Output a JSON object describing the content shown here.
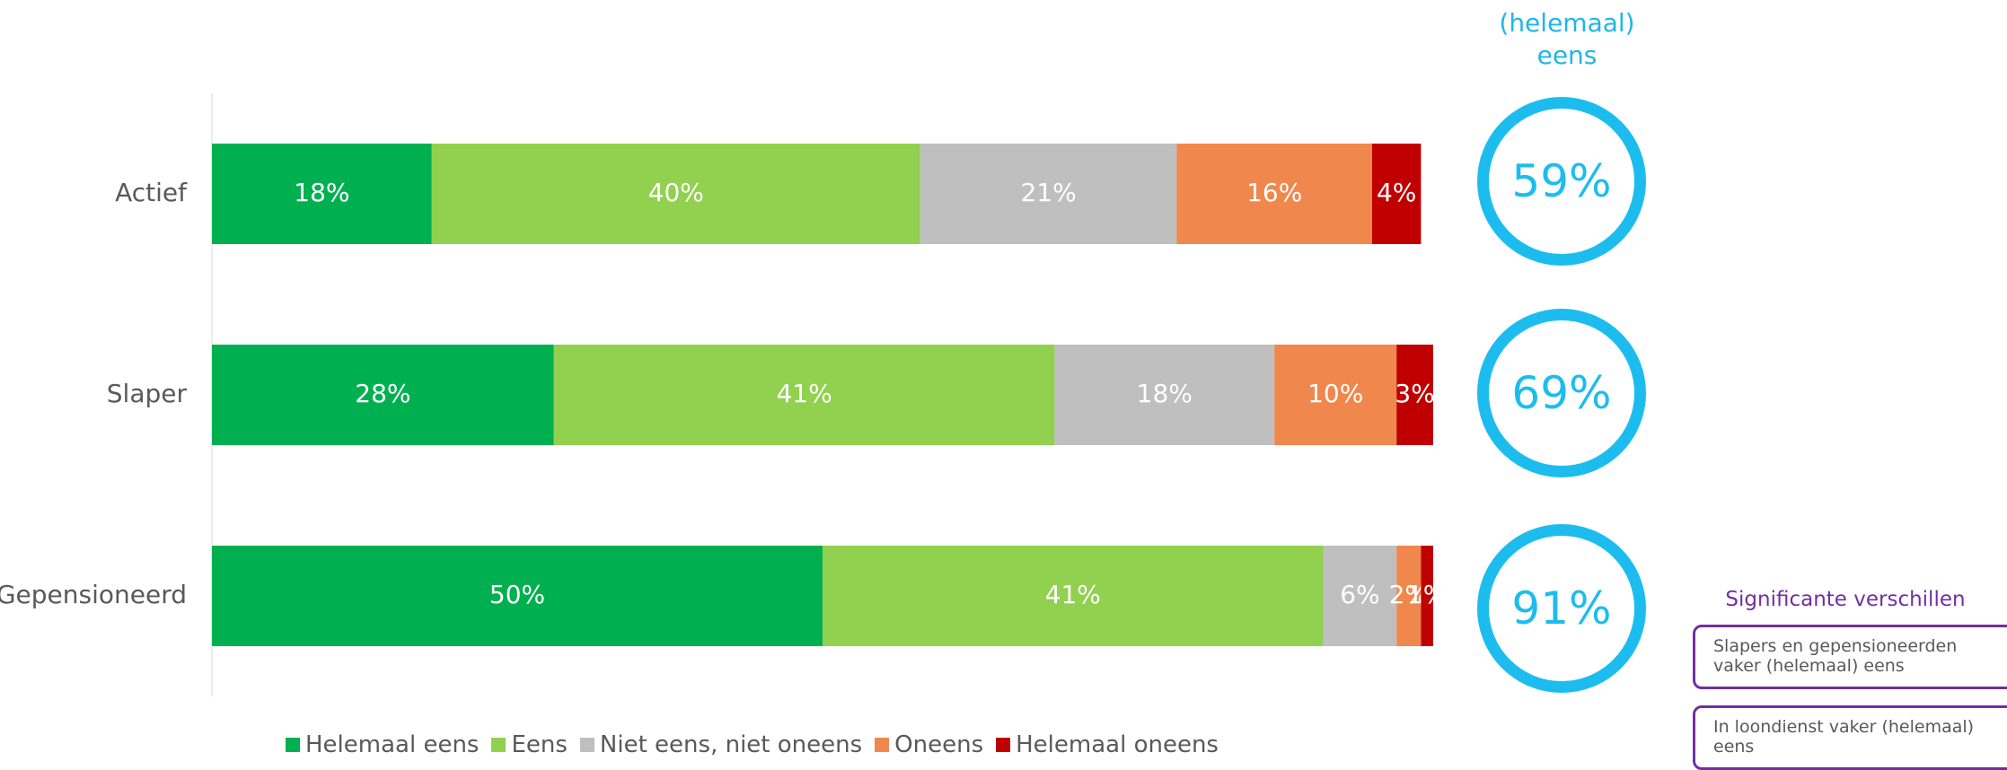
{
  "chart_data": {
    "type": "bar",
    "orientation": "horizontal",
    "stacked": true,
    "categories": [
      "Actief",
      "Slaper",
      "Gepensioneerd"
    ],
    "series": [
      {
        "name": "Helemaal eens",
        "color": "#00b050",
        "values": [
          18,
          28,
          50
        ],
        "labels": [
          "18%",
          "28%",
          "50%"
        ]
      },
      {
        "name": "Eens",
        "color": "#92d050",
        "values": [
          40,
          41,
          41
        ],
        "labels": [
          "40%",
          "41%",
          "41%"
        ]
      },
      {
        "name": "Niet eens, niet oneens",
        "color": "#bfbfbf",
        "values": [
          21,
          18,
          6
        ],
        "labels": [
          "21%",
          "18%",
          "6%"
        ]
      },
      {
        "name": "Oneens",
        "color": "#f0874c",
        "values": [
          16,
          10,
          2
        ],
        "labels": [
          "16%",
          "10%",
          "2%"
        ]
      },
      {
        "name": "Helemaal oneens",
        "color": "#c00000",
        "values": [
          4,
          3,
          1
        ],
        "labels": [
          "4%",
          "3%",
          "1%"
        ]
      }
    ],
    "legend_position": "bottom",
    "grid": false
  },
  "summary": {
    "header": "(helemaal) eens",
    "values": [
      "59%",
      "69%",
      "91%"
    ],
    "color": "#1cbdee"
  },
  "significance": {
    "title": "Significante verschillen",
    "notes": [
      "Slapers en gepensioneerden vaker (helemaal) eens",
      "In loondienst vaker (helemaal) eens"
    ],
    "color": "#7030a0"
  }
}
